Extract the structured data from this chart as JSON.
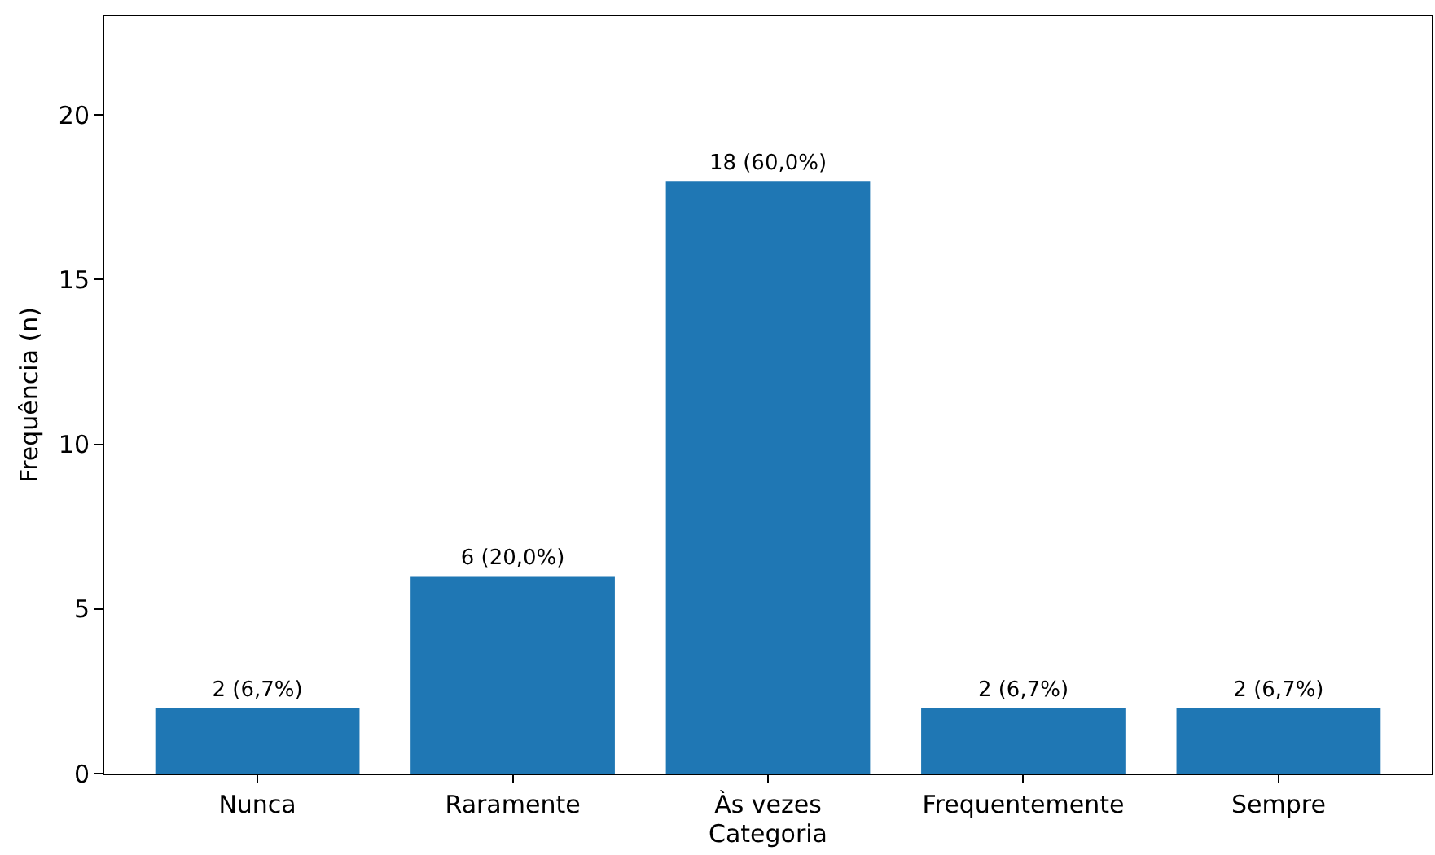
{
  "chart_data": {
    "type": "bar",
    "xlabel": "Categoria",
    "ylabel": "Frequência (n)",
    "categories": [
      "Nunca",
      "Raramente",
      "Às vezes",
      "Frequentemente",
      "Sempre"
    ],
    "values": [
      2,
      6,
      18,
      2,
      2
    ],
    "value_labels": [
      "2 (6,7%)",
      "6 (20,0%)",
      "18 (60,0%)",
      "2 (6,7%)",
      "2 (6,7%)"
    ],
    "color": "#1f77b4",
    "ylim": [
      0,
      23
    ],
    "yticks": [
      0,
      5,
      10,
      15,
      20
    ]
  }
}
